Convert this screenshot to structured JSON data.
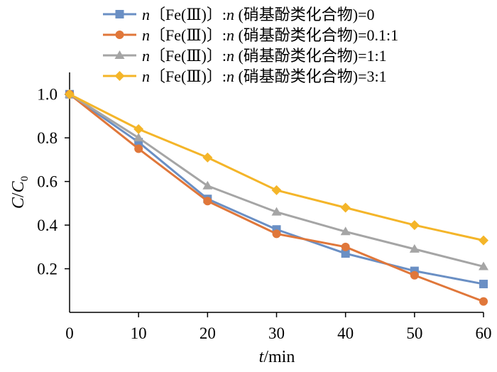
{
  "chart_data": {
    "type": "line",
    "x": [
      0,
      10,
      20,
      30,
      40,
      50,
      60
    ],
    "xlabel": "t/min",
    "ylabel": "C/C0",
    "xlim": [
      0,
      60
    ],
    "ylim": [
      0,
      1.1
    ],
    "xticks": [
      "0",
      "10",
      "20",
      "30",
      "40",
      "50",
      "60"
    ],
    "yticks": [
      "0.2",
      "0.4",
      "0.6",
      "0.8",
      "1.0"
    ],
    "grid": false,
    "legend_position": "top-right",
    "series": [
      {
        "name": "n〔Fe(Ⅲ)〕:n (硝基酚类化合物)=0",
        "color": "#6a8fc4",
        "marker": "square",
        "values": [
          1.0,
          0.78,
          0.52,
          0.38,
          0.27,
          0.19,
          0.13
        ]
      },
      {
        "name": "n〔Fe(Ⅲ)〕:n (硝基酚类化合物)=0.1:1",
        "color": "#e0773a",
        "marker": "circle",
        "values": [
          1.0,
          0.75,
          0.51,
          0.36,
          0.3,
          0.17,
          0.05
        ]
      },
      {
        "name": "n〔Fe(Ⅲ)〕:n (硝基酚类化合物)=1:1",
        "color": "#a5a5a5",
        "marker": "triangle",
        "values": [
          1.0,
          0.8,
          0.58,
          0.46,
          0.37,
          0.29,
          0.21
        ]
      },
      {
        "name": "n〔Fe(Ⅲ)〕:n (硝基酚类化合物)=3:1",
        "color": "#f4b529",
        "marker": "diamond",
        "values": [
          1.0,
          0.84,
          0.71,
          0.56,
          0.48,
          0.4,
          0.33
        ]
      }
    ]
  }
}
